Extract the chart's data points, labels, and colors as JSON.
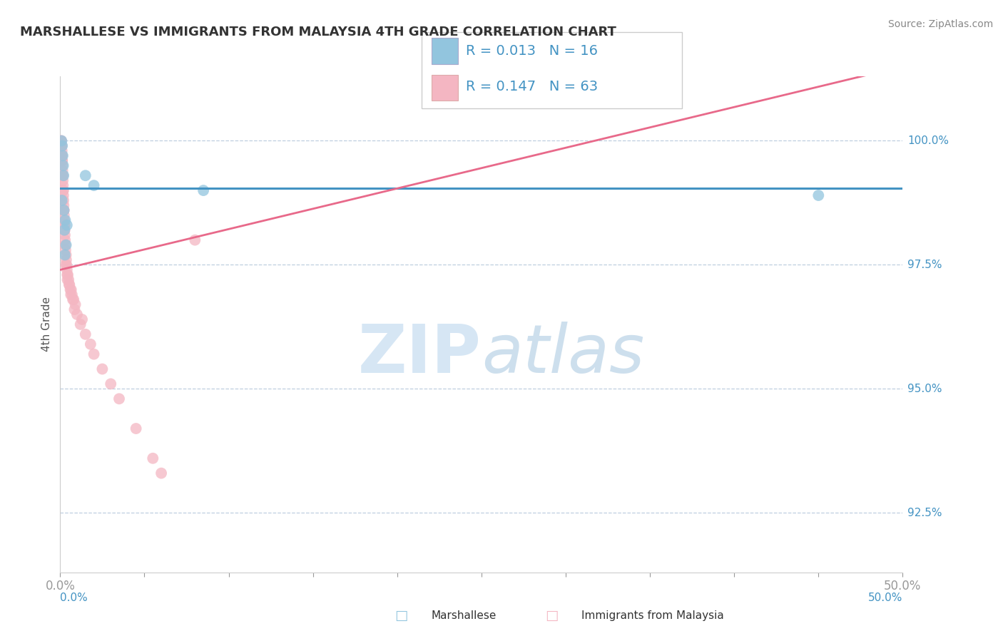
{
  "title": "MARSHALLESE VS IMMIGRANTS FROM MALAYSIA 4TH GRADE CORRELATION CHART",
  "source": "Source: ZipAtlas.com",
  "ylabel": "4th Grade",
  "xlim": [
    0.0,
    50.0
  ],
  "ylim": [
    91.3,
    101.3
  ],
  "ytick_vals": [
    92.5,
    95.0,
    97.5,
    100.0
  ],
  "ytick_labels": [
    "92.5%",
    "95.0%",
    "97.5%",
    "100.0%"
  ],
  "blue_R": 0.013,
  "blue_N": 16,
  "pink_R": 0.147,
  "pink_N": 63,
  "blue_color": "#92c5de",
  "pink_color": "#f4b6c2",
  "blue_line_color": "#4393c3",
  "pink_line_color": "#e8698a",
  "blue_line_y_flat": 99.05,
  "pink_line_x0": 0.0,
  "pink_line_y0": 97.4,
  "pink_line_x1": 50.0,
  "pink_line_y1": 101.5,
  "blue_x": [
    0.08,
    0.12,
    0.15,
    0.18,
    0.2,
    1.5,
    2.0,
    8.5,
    45.0,
    0.1,
    0.22,
    0.3,
    0.4,
    0.25,
    0.35,
    0.28
  ],
  "blue_y": [
    100.0,
    99.9,
    99.7,
    99.5,
    99.3,
    99.3,
    99.1,
    99.0,
    98.9,
    98.8,
    98.6,
    98.4,
    98.3,
    98.2,
    97.9,
    97.7
  ],
  "pink_x": [
    0.05,
    0.07,
    0.08,
    0.09,
    0.1,
    0.1,
    0.11,
    0.12,
    0.12,
    0.13,
    0.14,
    0.15,
    0.15,
    0.16,
    0.17,
    0.18,
    0.18,
    0.19,
    0.2,
    0.21,
    0.22,
    0.22,
    0.23,
    0.24,
    0.25,
    0.26,
    0.27,
    0.28,
    0.29,
    0.3,
    0.32,
    0.35,
    0.36,
    0.38,
    0.4,
    0.42,
    0.45,
    0.5,
    0.55,
    0.6,
    0.7,
    0.8,
    0.9,
    1.0,
    1.2,
    1.5,
    1.8,
    2.0,
    2.5,
    3.0,
    3.5,
    4.5,
    5.5,
    6.0,
    0.33,
    0.65,
    0.75,
    0.85,
    8.0,
    1.3,
    0.43,
    0.53,
    0.63
  ],
  "pink_y": [
    100.0,
    100.0,
    99.9,
    99.9,
    99.8,
    99.7,
    99.7,
    99.6,
    99.6,
    99.5,
    99.4,
    99.3,
    99.3,
    99.2,
    99.1,
    99.0,
    99.0,
    98.9,
    98.8,
    98.7,
    98.6,
    98.6,
    98.5,
    98.4,
    98.3,
    98.3,
    98.2,
    98.1,
    98.0,
    97.9,
    97.8,
    97.7,
    97.6,
    97.5,
    97.4,
    97.3,
    97.3,
    97.2,
    97.1,
    97.0,
    96.9,
    96.8,
    96.7,
    96.5,
    96.3,
    96.1,
    95.9,
    95.7,
    95.4,
    95.1,
    94.8,
    94.2,
    93.6,
    93.3,
    97.5,
    97.0,
    96.8,
    96.6,
    98.0,
    96.4,
    97.2,
    97.1,
    96.9
  ]
}
